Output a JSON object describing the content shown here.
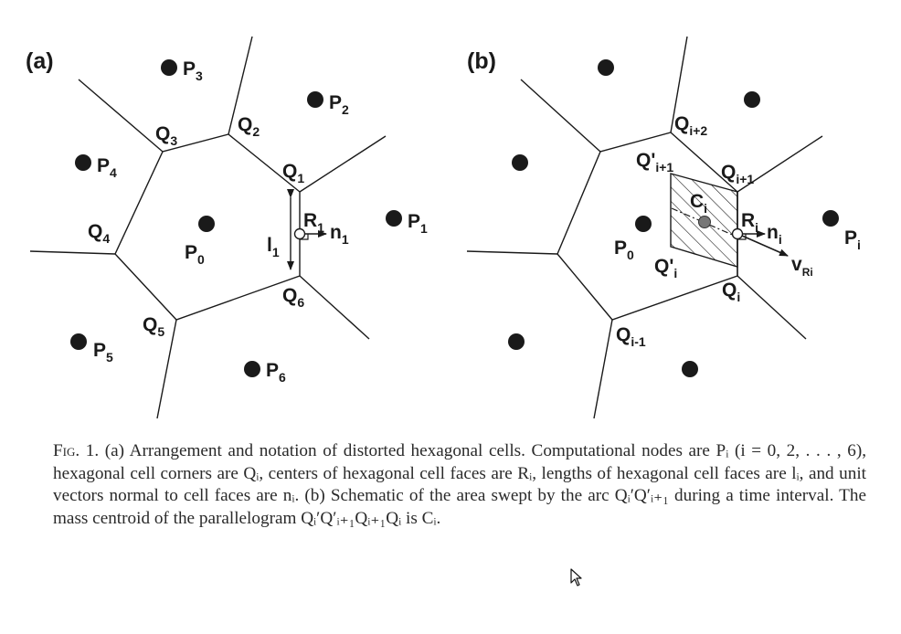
{
  "figure": {
    "panel_a": {
      "label": "(a)",
      "points": [
        {
          "id": "P",
          "sub": "0"
        },
        {
          "id": "P",
          "sub": "1"
        },
        {
          "id": "P",
          "sub": "2"
        },
        {
          "id": "P",
          "sub": "3"
        },
        {
          "id": "P",
          "sub": "4"
        },
        {
          "id": "P",
          "sub": "5"
        },
        {
          "id": "P",
          "sub": "6"
        }
      ],
      "corners": [
        {
          "id": "Q",
          "sub": "1"
        },
        {
          "id": "Q",
          "sub": "2"
        },
        {
          "id": "Q",
          "sub": "3"
        },
        {
          "id": "Q",
          "sub": "4"
        },
        {
          "id": "Q",
          "sub": "5"
        },
        {
          "id": "Q",
          "sub": "6"
        }
      ],
      "face_center": {
        "id": "R",
        "sub": "1"
      },
      "normal": {
        "id": "n",
        "sub": "1"
      },
      "length": {
        "id": "l",
        "sub": "1"
      }
    },
    "panel_b": {
      "label": "(b)",
      "P0": {
        "id": "P",
        "sub": "0"
      },
      "Pi": {
        "id": "P",
        "sub": "i"
      },
      "corners": [
        {
          "id": "Q",
          "sub": "i+2"
        },
        {
          "id": "Q",
          "sub": "i+1"
        },
        {
          "id": "Q",
          "sub": "i"
        },
        {
          "id": "Q",
          "sub": "i-1"
        }
      ],
      "primed": [
        {
          "id": "Q'",
          "sub": "i+1"
        },
        {
          "id": "Q'",
          "sub": "i"
        }
      ],
      "centroid": {
        "id": "C",
        "sub": "i"
      },
      "face_center": {
        "id": "R",
        "sub": "i"
      },
      "normal": {
        "id": "n",
        "sub": "i"
      },
      "velocity": {
        "id": "v",
        "sub": "Ri"
      }
    }
  },
  "caption": {
    "fig_label": "Fig. 1.",
    "text": "(a) Arrangement and notation of distorted hexagonal cells. Computational nodes are Pᵢ (i = 0, 2, . . . , 6), hexagonal cell corners are Qᵢ, centers of hexagonal cell faces are Rᵢ, lengths of hexagonal cell faces are lᵢ, and unit vectors normal to cell faces are nᵢ. (b) Schematic of the area swept by the arc Qᵢ′Q′ᵢ₊₁ during a time interval. The mass centroid of the parallelogram Qᵢ′Q′ᵢ₊₁Qᵢ₊₁Qᵢ is Cᵢ."
  },
  "colors": {
    "ink": "#1a1a1a",
    "centroid": "#777777",
    "background": "#ffffff"
  }
}
